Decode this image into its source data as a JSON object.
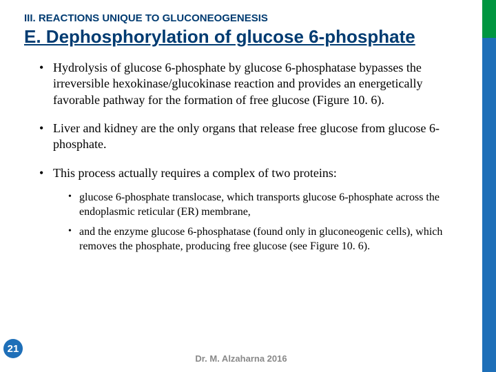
{
  "section_label": "III. REACTIONS UNIQUE TO GLUCONEOGENESIS",
  "title": "E. Dephosphorylation of glucose 6-phosphate",
  "bullets": [
    "Hydrolysis of glucose 6-phosphate by glucose 6-phosphatase bypasses the irreversible hexokinase/glucokinase reaction and provides an energetically favorable pathway for the formation of free glucose (Figure 10. 6).",
    "Liver and kidney are the only organs that release free glucose from glucose 6-phosphate.",
    "This process actually requires a complex of two proteins:"
  ],
  "sub_bullets": [
    "glucose 6-phosphate translocase, which transports glucose 6-phosphate across the endoplasmic reticular (ER) membrane,",
    "and the enzyme glucose 6-phosphatase (found only in gluconeogenic cells), which removes the phosphate, producing free glucose (see Figure 10. 6)."
  ],
  "page_number": "21",
  "footer": "Dr. M. Alzaharna 2016",
  "colors": {
    "heading": "#003b71",
    "sidebar_top": "#009640",
    "sidebar_bottom": "#1e6fb8",
    "page_badge": "#1e6fb8",
    "footer_text": "#898989"
  }
}
